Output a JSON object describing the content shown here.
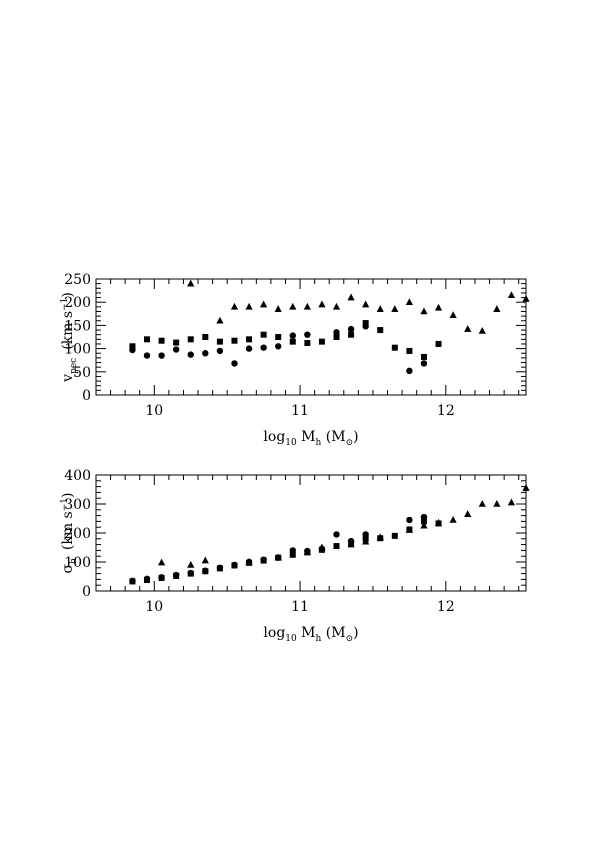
{
  "chart_data": [
    {
      "type": "scatter",
      "ylabel": {
        "main": "v",
        "sub": "pec",
        "units": "(km s",
        "exp": "−1",
        "close": ")"
      },
      "xlabel": {
        "main": "log",
        "sub": "10",
        "mid": " M",
        "sub2": "h",
        "units": " (M",
        "sun": "⊙",
        "close": ")"
      },
      "xlim": [
        9.6,
        12.55
      ],
      "ylim": [
        0,
        250
      ],
      "xticks": [
        "10",
        "11",
        "12"
      ],
      "yticks": [
        "0",
        "50",
        "100",
        "150",
        "200",
        "250"
      ],
      "series": [
        {
          "marker": "circle",
          "x": [
            9.85,
            9.95,
            10.05,
            10.15,
            10.25,
            10.35,
            10.45,
            10.55,
            10.65,
            10.75,
            10.85,
            10.95,
            11.05,
            11.25,
            11.35,
            11.45,
            11.75,
            11.85
          ],
          "y": [
            97,
            85,
            85,
            98,
            87,
            90,
            95,
            68,
            100,
            102,
            105,
            128,
            130,
            135,
            142,
            148,
            52,
            68
          ]
        },
        {
          "marker": "square",
          "x": [
            9.85,
            9.95,
            10.05,
            10.15,
            10.25,
            10.35,
            10.45,
            10.55,
            10.65,
            10.75,
            10.85,
            10.95,
            11.05,
            11.15,
            11.25,
            11.35,
            11.45,
            11.55,
            11.65,
            11.75,
            11.85,
            11.95
          ],
          "y": [
            105,
            120,
            117,
            113,
            120,
            125,
            115,
            117,
            120,
            130,
            125,
            115,
            112,
            115,
            125,
            130,
            155,
            140,
            102,
            95,
            82,
            110
          ]
        },
        {
          "marker": "triangle",
          "x": [
            10.25,
            10.45,
            10.55,
            10.65,
            10.75,
            10.85,
            10.95,
            11.05,
            11.15,
            11.25,
            11.35,
            11.45,
            11.55,
            11.65,
            11.75,
            11.85,
            11.95,
            12.05,
            12.15,
            12.25,
            12.35,
            12.45,
            12.55
          ],
          "y": [
            240,
            160,
            190,
            190,
            195,
            185,
            190,
            190,
            195,
            190,
            210,
            195,
            185,
            185,
            200,
            180,
            188,
            172,
            142,
            138,
            185,
            215,
            207
          ]
        }
      ]
    },
    {
      "type": "scatter",
      "ylabel": {
        "main": "σ",
        "sub": "h",
        "units": "(km s",
        "exp": "−1",
        "close": ")"
      },
      "xlabel": {
        "main": "log",
        "sub": "10",
        "mid": " M",
        "sub2": "h",
        "units": " (M",
        "sun": "⊙",
        "close": ")"
      },
      "xlim": [
        9.6,
        12.55
      ],
      "ylim": [
        0,
        400
      ],
      "xticks": [
        "10",
        "11",
        "12"
      ],
      "yticks": [
        "0",
        "100",
        "200",
        "300",
        "400"
      ],
      "series": [
        {
          "marker": "circle",
          "x": [
            9.85,
            9.95,
            10.05,
            10.15,
            10.25,
            10.35,
            10.45,
            10.55,
            10.65,
            10.75,
            10.85,
            10.95,
            11.05,
            11.15,
            11.25,
            11.35,
            11.45,
            11.75,
            11.85
          ],
          "y": [
            35,
            42,
            47,
            55,
            62,
            70,
            80,
            90,
            100,
            108,
            115,
            140,
            138,
            145,
            195,
            172,
            195,
            245,
            255
          ]
        },
        {
          "marker": "square",
          "x": [
            9.85,
            9.95,
            10.05,
            10.15,
            10.25,
            10.35,
            10.45,
            10.55,
            10.65,
            10.75,
            10.85,
            10.95,
            11.05,
            11.15,
            11.25,
            11.35,
            11.45,
            11.55,
            11.65,
            11.75,
            11.85,
            11.95
          ],
          "y": [
            33,
            38,
            45,
            52,
            60,
            68,
            78,
            88,
            97,
            105,
            115,
            125,
            133,
            142,
            155,
            165,
            180,
            182,
            190,
            212,
            240,
            233
          ]
        },
        {
          "marker": "triangle",
          "x": [
            10.05,
            10.25,
            10.35,
            10.65,
            10.85,
            11.05,
            11.15,
            11.35,
            11.45,
            11.55,
            11.75,
            11.85,
            11.95,
            12.05,
            12.15,
            12.25,
            12.35,
            12.45,
            12.55
          ],
          "y": [
            98,
            90,
            105,
            100,
            115,
            135,
            150,
            160,
            170,
            185,
            210,
            225,
            235,
            245,
            265,
            300,
            300,
            305,
            355
          ]
        }
      ]
    }
  ]
}
